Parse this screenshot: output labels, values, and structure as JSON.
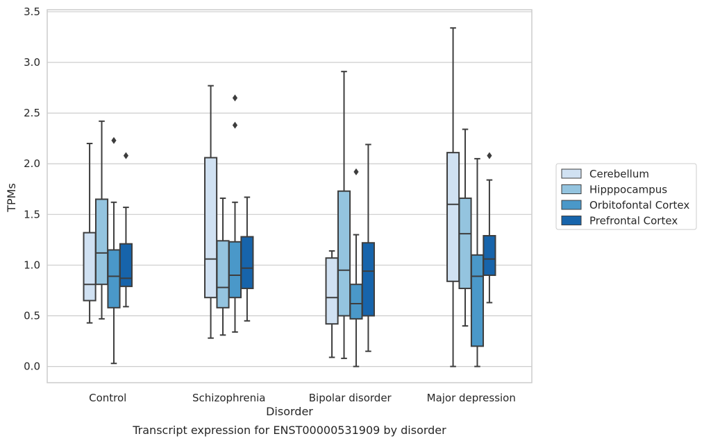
{
  "caption": "Transcript expression for ENST00000531909 by disorder",
  "chart_data": {
    "type": "box",
    "xlabel": "Disorder",
    "ylabel": "TPMs",
    "ylim": [
      -0.16,
      3.52
    ],
    "yticks": [
      0.0,
      0.5,
      1.0,
      1.5,
      2.0,
      2.5,
      3.0,
      3.5
    ],
    "ytick_labels": [
      "0.0",
      "0.5",
      "1.0",
      "1.5",
      "2.0",
      "2.5",
      "3.0",
      "3.5"
    ],
    "grid": "horizontal",
    "legend_position": "right",
    "categories": [
      "Control",
      "Schizophrenia",
      "Bipolar disorder",
      "Major depression"
    ],
    "series": [
      {
        "name": "Cerebellum",
        "color": "#d0e1f2",
        "boxes": [
          {
            "whisker_low": 0.43,
            "q1": 0.65,
            "median": 0.81,
            "q3": 1.32,
            "whisker_high": 2.2,
            "outliers": []
          },
          {
            "whisker_low": 0.28,
            "q1": 0.68,
            "median": 1.06,
            "q3": 2.06,
            "whisker_high": 2.77,
            "outliers": []
          },
          {
            "whisker_low": 0.09,
            "q1": 0.42,
            "median": 0.68,
            "q3": 1.07,
            "whisker_high": 1.14,
            "outliers": []
          },
          {
            "whisker_low": 0.0,
            "q1": 0.84,
            "median": 1.6,
            "q3": 2.11,
            "whisker_high": 3.34,
            "outliers": []
          }
        ]
      },
      {
        "name": "Hipppocampus",
        "color": "#94c4df",
        "boxes": [
          {
            "whisker_low": 0.47,
            "q1": 0.81,
            "median": 1.12,
            "q3": 1.65,
            "whisker_high": 2.42,
            "outliers": []
          },
          {
            "whisker_low": 0.31,
            "q1": 0.58,
            "median": 0.78,
            "q3": 1.24,
            "whisker_high": 1.66,
            "outliers": []
          },
          {
            "whisker_low": 0.08,
            "q1": 0.5,
            "median": 0.95,
            "q3": 1.73,
            "whisker_high": 2.91,
            "outliers": []
          },
          {
            "whisker_low": 0.4,
            "q1": 0.77,
            "median": 1.31,
            "q3": 1.66,
            "whisker_high": 2.34,
            "outliers": []
          }
        ]
      },
      {
        "name": "Orbitofontal Cortex",
        "color": "#4a98c9",
        "boxes": [
          {
            "whisker_low": 0.03,
            "q1": 0.58,
            "median": 0.89,
            "q3": 1.15,
            "whisker_high": 1.62,
            "outliers": [
              2.23
            ]
          },
          {
            "whisker_low": 0.34,
            "q1": 0.68,
            "median": 0.9,
            "q3": 1.23,
            "whisker_high": 1.62,
            "outliers": [
              2.38,
              2.65
            ]
          },
          {
            "whisker_low": 0.0,
            "q1": 0.47,
            "median": 0.62,
            "q3": 0.81,
            "whisker_high": 1.3,
            "outliers": [
              1.92
            ]
          },
          {
            "whisker_low": 0.0,
            "q1": 0.2,
            "median": 0.89,
            "q3": 1.1,
            "whisker_high": 2.05,
            "outliers": []
          }
        ]
      },
      {
        "name": "Prefrontal Cortex",
        "color": "#1764ab",
        "boxes": [
          {
            "whisker_low": 0.59,
            "q1": 0.79,
            "median": 0.87,
            "q3": 1.21,
            "whisker_high": 1.57,
            "outliers": [
              2.08
            ]
          },
          {
            "whisker_low": 0.45,
            "q1": 0.77,
            "median": 0.97,
            "q3": 1.28,
            "whisker_high": 1.67,
            "outliers": []
          },
          {
            "whisker_low": 0.15,
            "q1": 0.5,
            "median": 0.94,
            "q3": 1.22,
            "whisker_high": 2.19,
            "outliers": []
          },
          {
            "whisker_low": 0.63,
            "q1": 0.9,
            "median": 1.06,
            "q3": 1.29,
            "whisker_high": 1.84,
            "outliers": [
              2.08
            ]
          }
        ]
      }
    ]
  }
}
